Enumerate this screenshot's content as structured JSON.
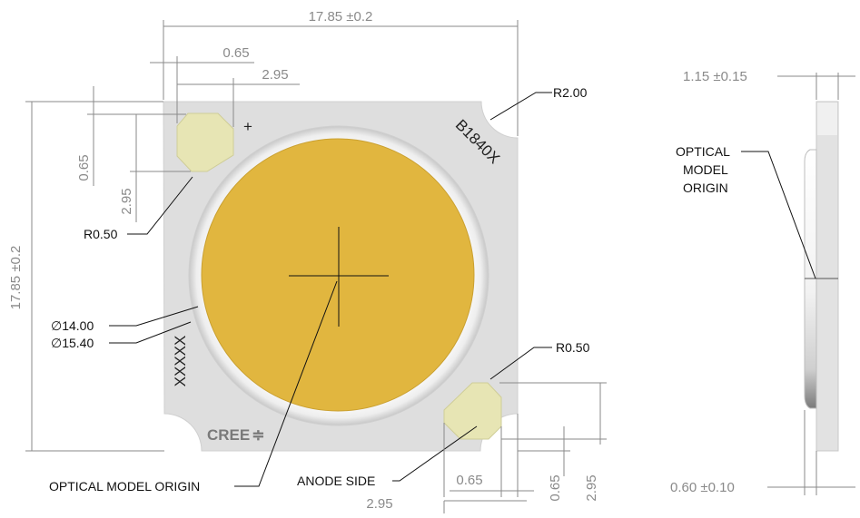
{
  "front_view": {
    "width_dim": "17.85 ±0.2",
    "height_dim": "17.85 ±0.2",
    "top_pad_x_offset": "0.65",
    "top_pad_width": "2.95",
    "top_pad_y_offset": "0.65",
    "top_pad_height": "2.95",
    "bottom_pad_x_offset": "0.65",
    "bottom_pad_width": "2.95",
    "bottom_pad_y_offset": "0.65",
    "bottom_pad_height": "2.95",
    "corner_radius": "R2.00",
    "pad_radius_top": "R0.50",
    "pad_radius_bottom": "R0.50",
    "les_diameter": "14.00",
    "dam_diameter": "15.40",
    "diameter_symbol": "∅",
    "part_marking": "B1840X",
    "lot_marking": "XXXXX",
    "plus_mark": "+",
    "logo_text": "CREE",
    "logo_symbol": "≑",
    "optical_origin_label": "OPTICAL MODEL ORIGIN",
    "anode_label": "ANODE SIDE"
  },
  "side_view": {
    "thickness_dim": "1.15 ±0.15",
    "lens_height_dim": "0.60 ±0.10",
    "optical_origin_line1": "OPTICAL",
    "optical_origin_line2": "MODEL",
    "optical_origin_line3": "ORIGIN"
  },
  "colors": {
    "substrate": "#dedede",
    "phosphor": "#e1b63f",
    "dam": "#f7f7f7",
    "pad": "#e7e5b4"
  }
}
